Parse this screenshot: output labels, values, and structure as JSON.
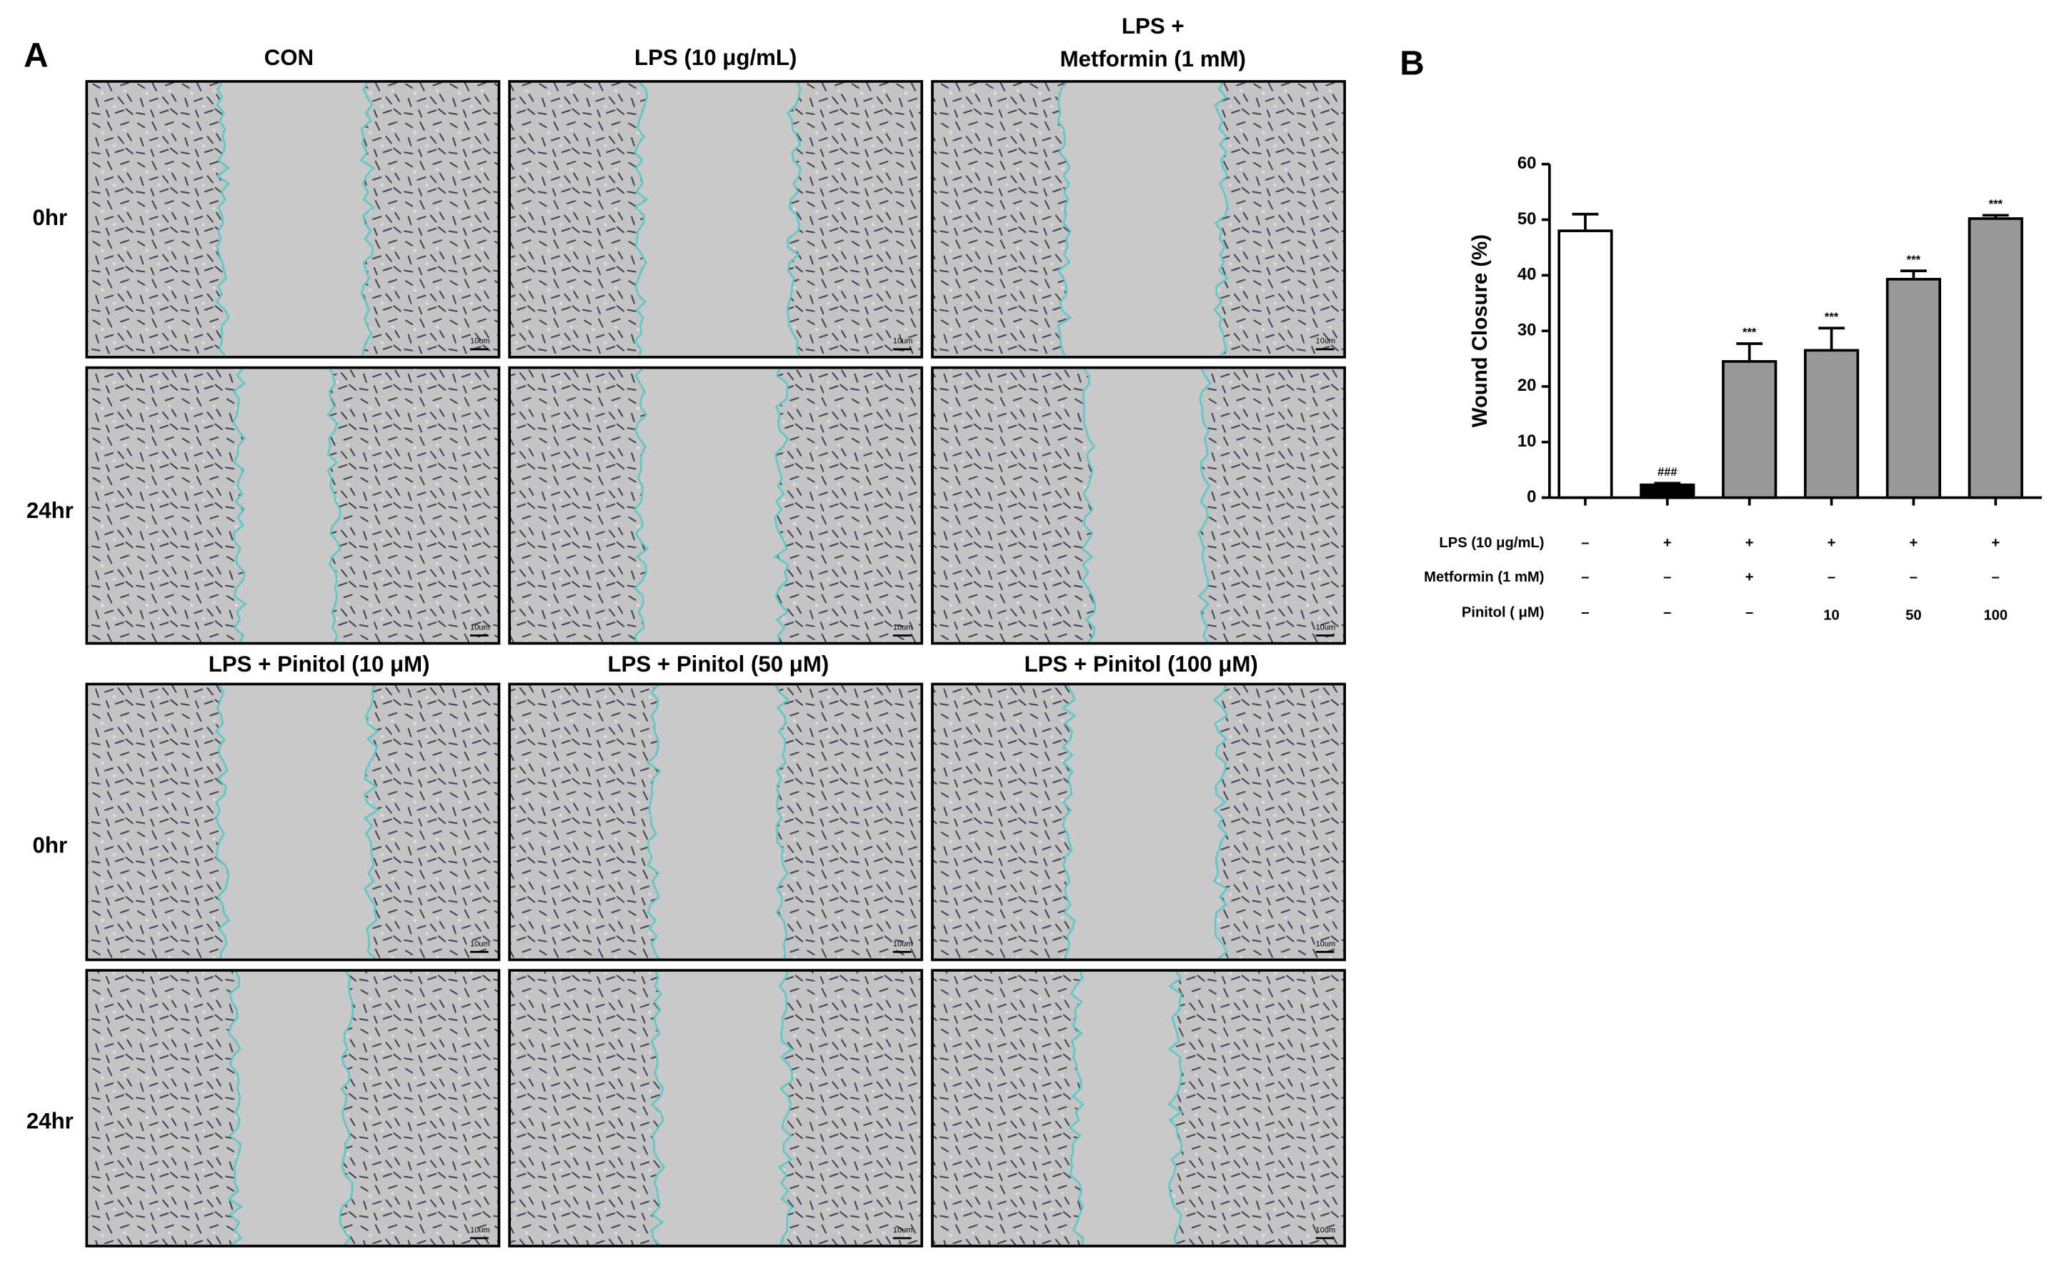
{
  "panel_a": {
    "label": "A",
    "column_titles": [
      "CON",
      "LPS (10 μg/mL)",
      [
        "LPS +",
        "Metformin (1 mM)"
      ],
      "LPS + Pinitol (10 μM)",
      "LPS + Pinitol (50 μM)",
      "LPS + Pinitol (100 μM)"
    ],
    "row_labels": [
      "0hr",
      "24hr",
      "0hr",
      "24hr"
    ],
    "scale_bar": "10um"
  },
  "chart_data": {
    "type": "bar",
    "label": "B",
    "ylabel": "Wound Closure (%)",
    "values": [
      48,
      2.3,
      24.5,
      26.5,
      39.3,
      50.2
    ],
    "errors": [
      3,
      0.3,
      3.2,
      4,
      1.5,
      0.6
    ],
    "bar_colors": [
      "#ffffff",
      "#000000",
      "#999999",
      "#999999",
      "#999999",
      "#999999"
    ],
    "annotations": [
      null,
      "###",
      "***",
      "***",
      "***",
      "***"
    ],
    "ylim": [
      0,
      60
    ],
    "yticks": [
      0,
      10,
      20,
      30,
      40,
      50,
      60
    ],
    "treatment_table": [
      {
        "label": "LPS (10 μg/mL)",
        "cells": [
          "–",
          "+",
          "+",
          "+",
          "+",
          "+"
        ]
      },
      {
        "label": "Metformin (1 mM)",
        "cells": [
          "–",
          "–",
          "+",
          "–",
          "–",
          "–"
        ]
      },
      {
        "label": "Pinitol ( μM)",
        "cells": [
          "–",
          "–",
          "–",
          "10",
          "50",
          "100"
        ]
      }
    ]
  }
}
